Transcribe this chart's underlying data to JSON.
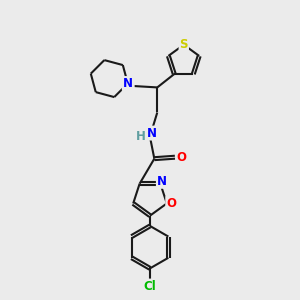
{
  "bg_color": "#ebebeb",
  "bond_color": "#1a1a1a",
  "bond_width": 1.5,
  "atom_colors": {
    "N": "#0000ff",
    "O": "#ff0000",
    "S": "#cccc00",
    "Cl": "#00bb00",
    "C": "#1a1a1a"
  },
  "font_size": 8.5,
  "fig_bg": "#ebebeb"
}
